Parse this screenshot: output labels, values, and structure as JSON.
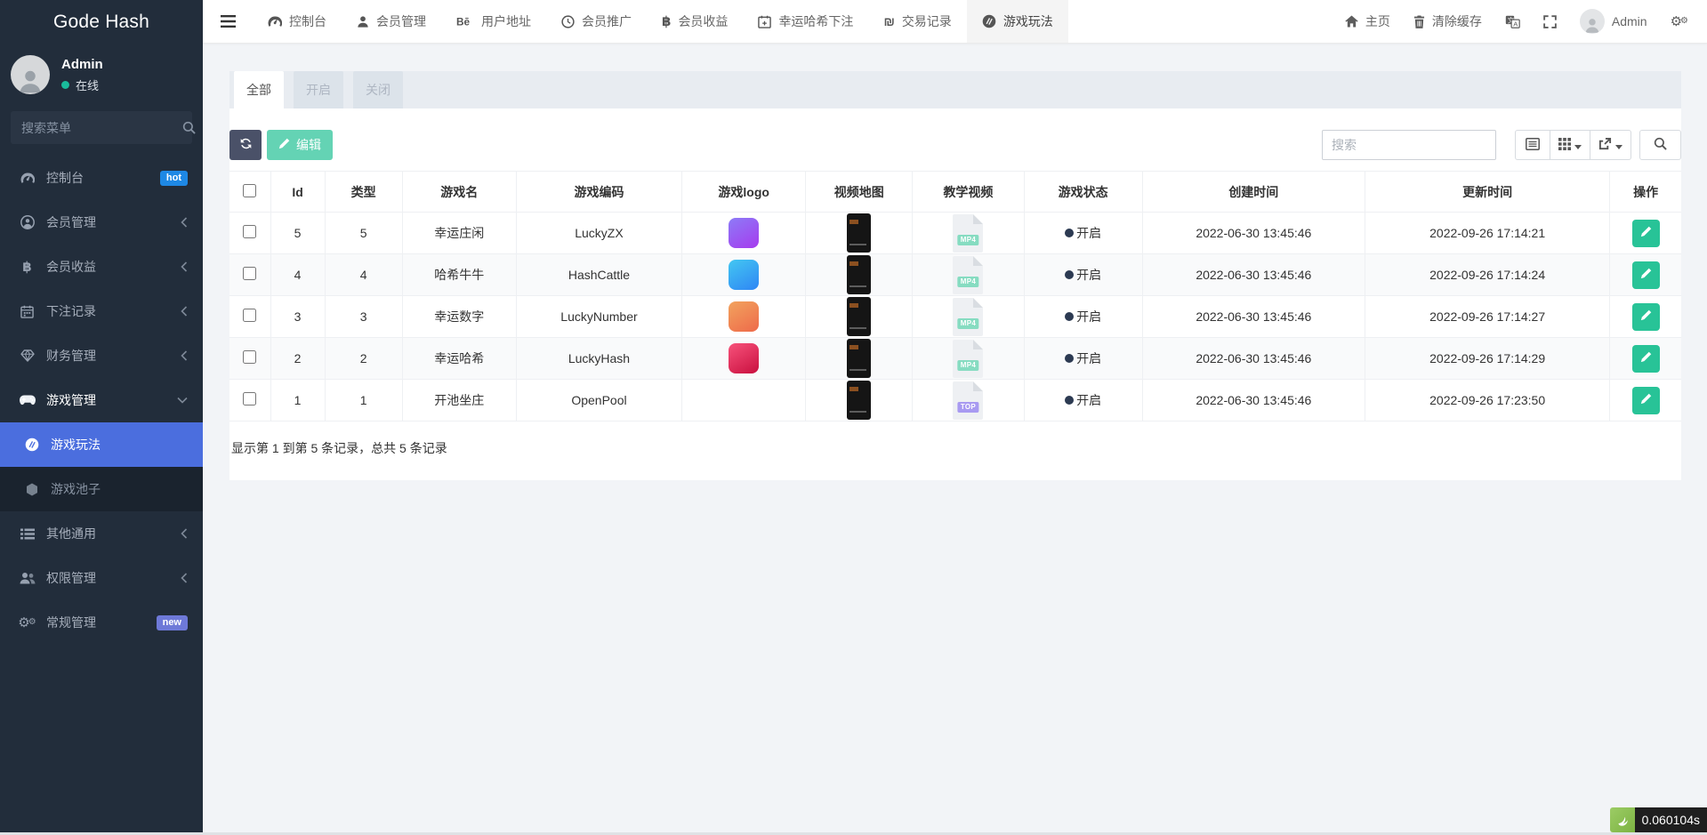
{
  "brand": "Gode Hash",
  "user": {
    "name": "Admin",
    "status_label": "在线",
    "online_color": "#1abc9c"
  },
  "sidebar": {
    "search_placeholder": "搜索菜单",
    "items": [
      {
        "icon": "gauge-icon",
        "label": "控制台",
        "badge": {
          "text": "hot",
          "color": "#1e88e5"
        }
      },
      {
        "icon": "user-circle-icon",
        "label": "会员管理",
        "arrow_icon": "chevron-left-icon"
      },
      {
        "icon": "bitcoin-icon",
        "label": "会员收益",
        "arrow_icon": "chevron-left-icon"
      },
      {
        "icon": "calendar-icon",
        "label": "下注记录",
        "arrow_icon": "chevron-left-icon"
      },
      {
        "icon": "gem-icon",
        "label": "财务管理",
        "arrow_icon": "chevron-left-icon"
      },
      {
        "icon": "gamepad-icon",
        "label": "游戏管理",
        "arrow_icon": "chevron-down-icon",
        "expanded": true
      },
      {
        "icon": "puck-icon",
        "label": "游戏玩法",
        "active": true,
        "submenu": true
      },
      {
        "icon": "hexagon-icon",
        "label": "游戏池子",
        "submenu": true
      },
      {
        "icon": "list-icon",
        "label": "其他通用",
        "arrow_icon": "chevron-left-icon"
      },
      {
        "icon": "users-icon",
        "label": "权限管理",
        "arrow_icon": "chevron-left-icon"
      },
      {
        "icon": "gears-icon",
        "label": "常规管理",
        "badge": {
          "text": "new",
          "color": "#6e79d8"
        }
      }
    ],
    "active_color": "#4b6ede"
  },
  "topnav": {
    "items": [
      {
        "icon": "gauge-icon",
        "label": "控制台"
      },
      {
        "icon": "user-icon",
        "label": "会员管理"
      },
      {
        "icon": "behance-icon",
        "label": "用户地址"
      },
      {
        "icon": "clock-icon",
        "label": "会员推广"
      },
      {
        "icon": "bitcoin-icon",
        "label": "会员收益"
      },
      {
        "icon": "calendar-plus-icon",
        "label": "幸运哈希下注"
      },
      {
        "icon": "shekel-icon",
        "label": "交易记录"
      },
      {
        "icon": "puck-icon",
        "label": "游戏玩法",
        "active": true
      }
    ],
    "right": [
      {
        "icon": "home-icon",
        "label": "主页"
      },
      {
        "icon": "trash-icon",
        "label": "清除缓存"
      },
      {
        "icon": "language-icon"
      },
      {
        "icon": "fullscreen-icon"
      },
      {
        "avatar_icon": "user-icon",
        "label": "Admin"
      },
      {
        "icon": "gears-icon"
      }
    ]
  },
  "tabs": [
    {
      "label": "全部",
      "active": true
    },
    {
      "label": "开启"
    },
    {
      "label": "关闭"
    }
  ],
  "toolbar": {
    "edit_label": "编辑",
    "search_placeholder": "搜索"
  },
  "table": {
    "headers": [
      "Id",
      "类型",
      "游戏名",
      "游戏编码",
      "游戏logo",
      "视频地图",
      "教学视频",
      "游戏状态",
      "创建时间",
      "更新时间",
      "操作"
    ],
    "status_dot_color": "#2c3a52",
    "rows": [
      {
        "id": "5",
        "type": "5",
        "name": "幸运庄闲",
        "code": "LuckyZX",
        "logo": {
          "from": "#8d7bf7",
          "to": "#a63bee"
        },
        "video": true,
        "file": {
          "label": "MP4",
          "color": "#86dcc1"
        },
        "status": "开启",
        "created": "2022-06-30 13:45:46",
        "updated": "2022-09-26 17:14:21"
      },
      {
        "id": "4",
        "type": "4",
        "name": "哈希牛牛",
        "code": "HashCattle",
        "logo": {
          "from": "#43c7f2",
          "to": "#2f86f4"
        },
        "video": true,
        "file": {
          "label": "MP4",
          "color": "#86dcc1"
        },
        "status": "开启",
        "created": "2022-06-30 13:45:46",
        "updated": "2022-09-26 17:14:24"
      },
      {
        "id": "3",
        "type": "3",
        "name": "幸运数字",
        "code": "LuckyNumber",
        "logo": {
          "from": "#f2a35e",
          "to": "#ee6a4a"
        },
        "video": true,
        "file": {
          "label": "MP4",
          "color": "#86dcc1"
        },
        "status": "开启",
        "created": "2022-06-30 13:45:46",
        "updated": "2022-09-26 17:14:27"
      },
      {
        "id": "2",
        "type": "2",
        "name": "幸运哈希",
        "code": "LuckyHash",
        "logo": {
          "from": "#f7527b",
          "to": "#c9103f"
        },
        "video": true,
        "file": {
          "label": "MP4",
          "color": "#86dcc1"
        },
        "status": "开启",
        "created": "2022-06-30 13:45:46",
        "updated": "2022-09-26 17:14:29"
      },
      {
        "id": "1",
        "type": "1",
        "name": "开池坐庄",
        "code": "OpenPool",
        "logo": null,
        "video": false,
        "file": {
          "label": "TOP",
          "color": "#a89af1"
        },
        "status": "开启",
        "created": "2022-06-30 13:45:46",
        "updated": "2022-09-26 17:23:50"
      }
    ],
    "summary": "显示第 1 到第 5 条记录，总共 5 条记录"
  },
  "perf": {
    "elapsed": "0.060104s"
  }
}
